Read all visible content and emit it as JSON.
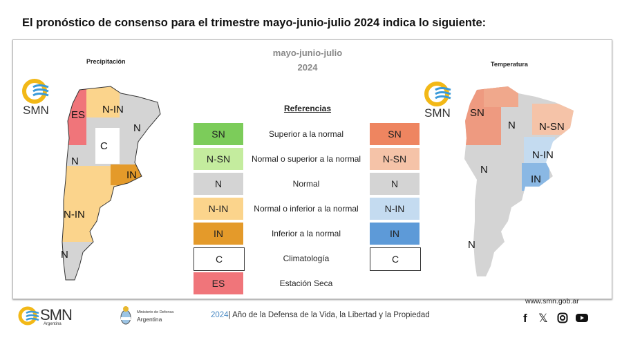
{
  "title": "El pronóstico de consenso para el trimestre mayo-junio-julio 2024 indica lo siguiente:",
  "period": {
    "months": "mayo-junio-julio",
    "year": "2024"
  },
  "precip_map": {
    "title": "Precipitación",
    "labels": [
      "ES",
      "N-IN",
      "N",
      "C",
      "N",
      "IN",
      "N-IN",
      "N"
    ]
  },
  "temp_map": {
    "title": "Temperatura",
    "labels": [
      "SN",
      "N",
      "N-SN",
      "N-IN",
      "N",
      "IN",
      "N"
    ]
  },
  "logo_text": "SMN",
  "legend": {
    "title": "Referencias",
    "rows": [
      {
        "desc": "Superior a la normal",
        "precip": "SN",
        "precip_color": "#7ccc5a",
        "temp": "SN",
        "temp_color": "#ee8560"
      },
      {
        "desc": "Normal o superior a la normal",
        "precip": "N-SN",
        "precip_color": "#c4ec9e",
        "temp": "N-SN",
        "temp_color": "#f5c3a8"
      },
      {
        "desc": "Normal",
        "precip": "N",
        "precip_color": "#d4d4d4",
        "temp": "N",
        "temp_color": "#d4d4d4"
      },
      {
        "desc": "Normal o inferior a la normal",
        "precip": "N-IN",
        "precip_color": "#fbd48c",
        "temp": "N-IN",
        "temp_color": "#c4dbf0"
      },
      {
        "desc": "Inferior a la normal",
        "precip": "IN",
        "precip_color": "#e49a2a",
        "temp": "IN",
        "temp_color": "#5d9ad8"
      },
      {
        "desc": "Climatología",
        "precip": "C",
        "precip_color": "#ffffff",
        "temp": "C",
        "temp_color": "#ffffff"
      },
      {
        "desc": "Estación Seca",
        "precip": "ES",
        "precip_color": "#f0757a"
      }
    ]
  },
  "footer": {
    "smn": "SMN",
    "smn_sub": "Argentina",
    "ministry_line1": "Ministerio de Defensa",
    "ministry_line2": "Argentina",
    "year": "2024",
    "motto": "| Año de la Defensa de la Vida, la Libertad y la Propiedad",
    "website": "www.smn.gob.ar",
    "social": [
      "facebook",
      "x",
      "instagram",
      "youtube"
    ]
  }
}
